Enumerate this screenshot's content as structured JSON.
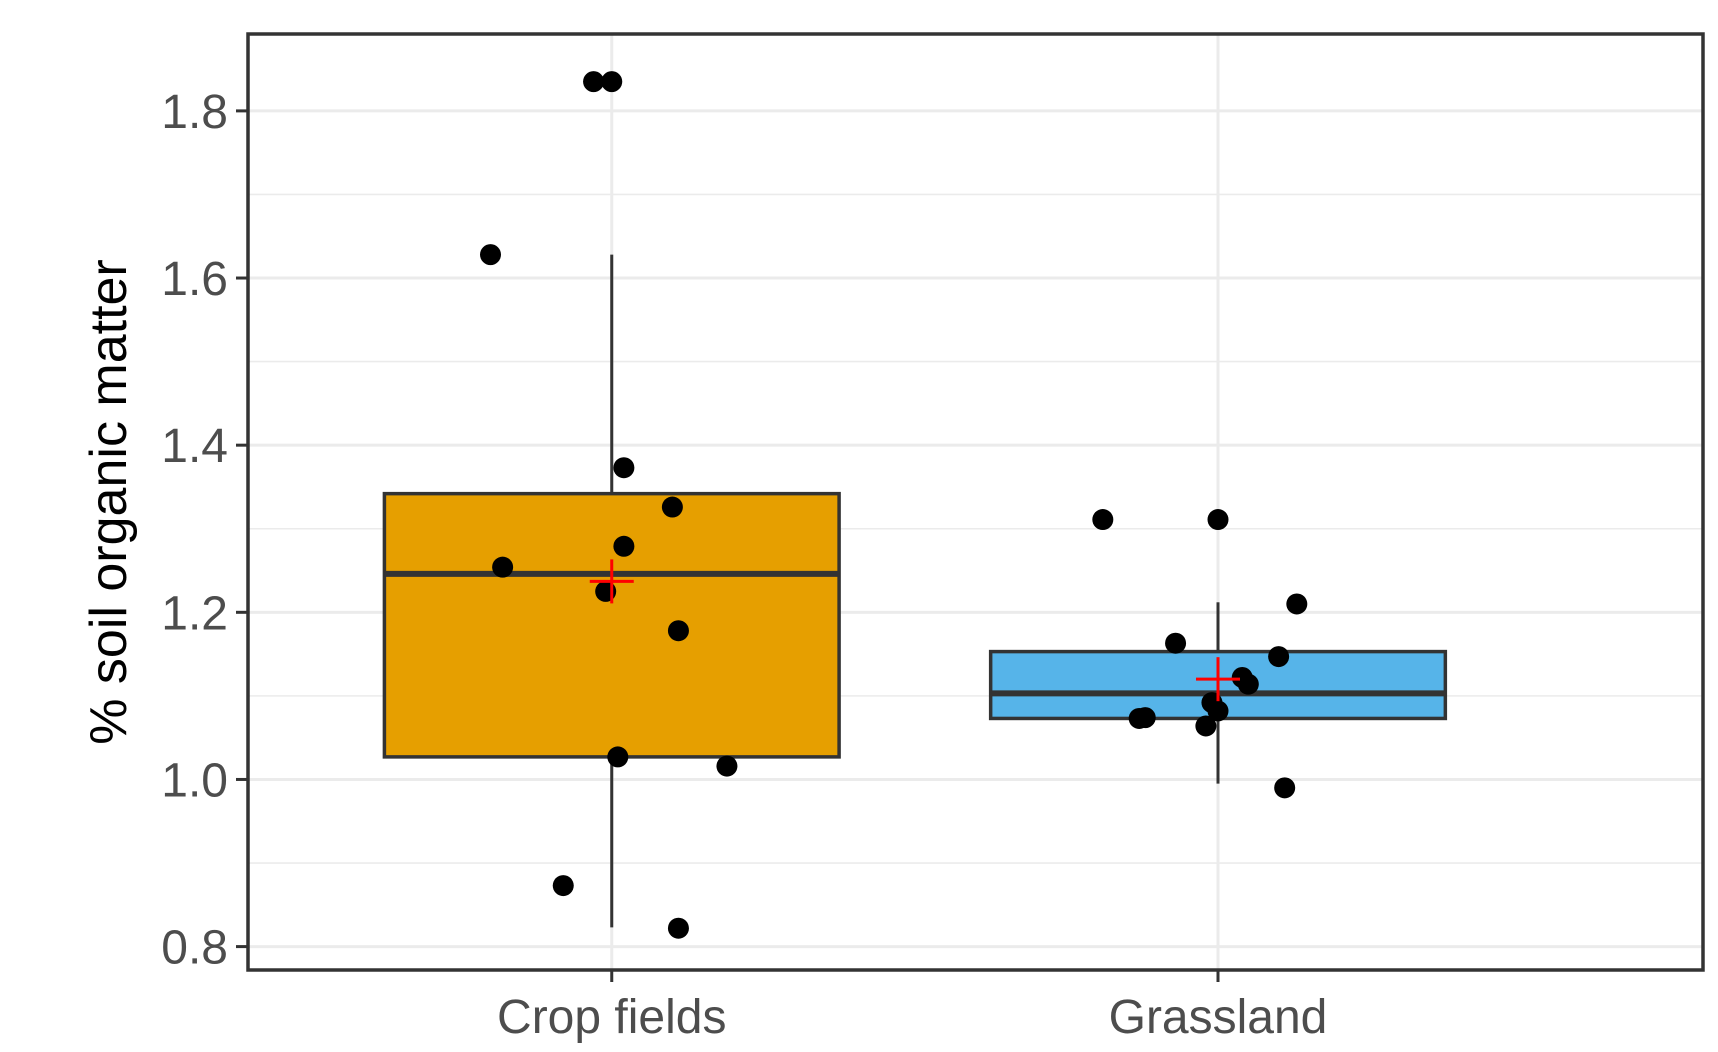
{
  "chart_data": {
    "type": "box",
    "xlabel": "",
    "ylabel": "% soil organic matter",
    "ylim": [
      0.772,
      1.892
    ],
    "y_ticks": [
      0.8,
      1.0,
      1.2,
      1.4,
      1.6,
      1.8
    ],
    "y_tick_labels": [
      "0.8",
      "1.0",
      "1.2",
      "1.4",
      "1.6",
      "1.8"
    ],
    "grid": true,
    "categories": [
      "Crop fields",
      "Grassland"
    ],
    "boxes": [
      {
        "category": "Crop fields",
        "fill": "#E69F00",
        "whisker_low": 0.823,
        "q1": 1.027,
        "median": 1.246,
        "q3": 1.342,
        "whisker_high": 1.628,
        "mean": 1.237,
        "points": [
          {
            "offset": -0.03,
            "y": 1.835
          },
          {
            "offset": 0.0,
            "y": 1.835
          },
          {
            "offset": -0.2,
            "y": 1.628
          },
          {
            "offset": 0.02,
            "y": 1.373
          },
          {
            "offset": 0.1,
            "y": 1.326
          },
          {
            "offset": 0.02,
            "y": 1.279
          },
          {
            "offset": -0.18,
            "y": 1.254
          },
          {
            "offset": -0.01,
            "y": 1.225
          },
          {
            "offset": 0.11,
            "y": 1.178
          },
          {
            "offset": 0.01,
            "y": 1.027
          },
          {
            "offset": 0.19,
            "y": 1.016
          },
          {
            "offset": -0.08,
            "y": 0.873
          },
          {
            "offset": 0.11,
            "y": 0.822
          }
        ]
      },
      {
        "category": "Grassland",
        "fill": "#56B4E9",
        "whisker_low": 0.995,
        "q1": 1.073,
        "median": 1.103,
        "q3": 1.153,
        "whisker_high": 1.212,
        "mean": 1.12,
        "points": [
          {
            "offset": -0.19,
            "y": 1.311
          },
          {
            "offset": 0.0,
            "y": 1.311
          },
          {
            "offset": 0.13,
            "y": 1.21
          },
          {
            "offset": -0.07,
            "y": 1.163
          },
          {
            "offset": 0.1,
            "y": 1.147
          },
          {
            "offset": 0.04,
            "y": 1.122
          },
          {
            "offset": 0.05,
            "y": 1.114
          },
          {
            "offset": -0.01,
            "y": 1.092
          },
          {
            "offset": 0.0,
            "y": 1.082
          },
          {
            "offset": -0.12,
            "y": 1.074
          },
          {
            "offset": -0.13,
            "y": 1.073
          },
          {
            "offset": -0.02,
            "y": 1.064
          },
          {
            "offset": 0.11,
            "y": 0.99
          }
        ]
      }
    ],
    "colors": {
      "box_outline": "#333333",
      "points": "#000000",
      "mean_marker": "#FF0000",
      "panel_border": "#333333",
      "grid": "#ebebeb"
    }
  }
}
